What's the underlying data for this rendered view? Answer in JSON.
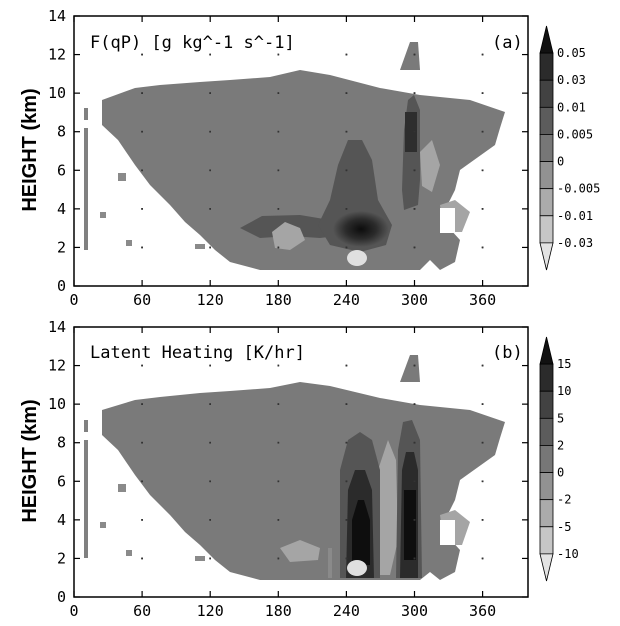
{
  "chart_data": [
    {
      "type": "heatmap",
      "title": "F(qP) [g kg^-1 s^-1]",
      "panel_label": "(a)",
      "ylabel": "HEIGHT (km)",
      "xlabel": "",
      "xlim": [
        0,
        400
      ],
      "ylim": [
        0,
        14
      ],
      "xticks": [
        "0",
        "60",
        "120",
        "180",
        "240",
        "300",
        "360"
      ],
      "yticks": [
        "0",
        "2",
        "4",
        "6",
        "8",
        "10",
        "12",
        "14"
      ],
      "colorbar": {
        "labels": [
          "0.05",
          "0.03",
          "0.01",
          "0.005",
          "0",
          "-0.005",
          "-0.01",
          "-0.03"
        ],
        "colors": [
          "#111111",
          "#2b2b2b",
          "#424242",
          "#5c5c5c",
          "#777777",
          "#929292",
          "#ababab",
          "#c6c6c6",
          "#e3e3e3"
        ]
      },
      "features": [
        {
          "kind": "background_field",
          "level": 4,
          "x_range": [
            40,
            390
          ],
          "y_range": [
            0.8,
            11.2
          ]
        },
        {
          "kind": "core",
          "x": 260,
          "y": 2.8,
          "level": 1
        },
        {
          "kind": "column",
          "x": 300,
          "y_range": [
            3,
            10
          ],
          "level": 2
        },
        {
          "kind": "positive_band",
          "x_range": [
            160,
            240
          ],
          "y": 3.1,
          "level": 3
        },
        {
          "kind": "negative_pocket",
          "x": 262,
          "y": 1.3,
          "level": 8
        }
      ]
    },
    {
      "type": "heatmap",
      "title": "Latent Heating [K/hr]",
      "panel_label": "(b)",
      "ylabel": "HEIGHT (km)",
      "xlabel": "",
      "xlim": [
        0,
        400
      ],
      "ylim": [
        0,
        14
      ],
      "xticks": [
        "0",
        "60",
        "120",
        "180",
        "240",
        "300",
        "360"
      ],
      "yticks": [
        "0",
        "2",
        "4",
        "6",
        "8",
        "10",
        "12",
        "14"
      ],
      "colorbar": {
        "labels": [
          "15",
          "10",
          "5",
          "2",
          "0",
          "-2",
          "-5",
          "-10"
        ],
        "colors": [
          "#111111",
          "#2b2b2b",
          "#424242",
          "#5c5c5c",
          "#777777",
          "#929292",
          "#ababab",
          "#c6c6c6",
          "#e3e3e3"
        ]
      },
      "features": [
        {
          "kind": "background_field",
          "level": 4,
          "x_range": [
            40,
            390
          ],
          "y_range": [
            0.8,
            11.2
          ]
        },
        {
          "kind": "column",
          "x": 258,
          "y_range": [
            1,
            8
          ],
          "level": 0
        },
        {
          "kind": "column",
          "x": 300,
          "y_range": [
            1,
            9.5
          ],
          "level": 0
        },
        {
          "kind": "negative_pocket",
          "x": 262,
          "y": 1.3,
          "level": 8
        }
      ]
    }
  ]
}
